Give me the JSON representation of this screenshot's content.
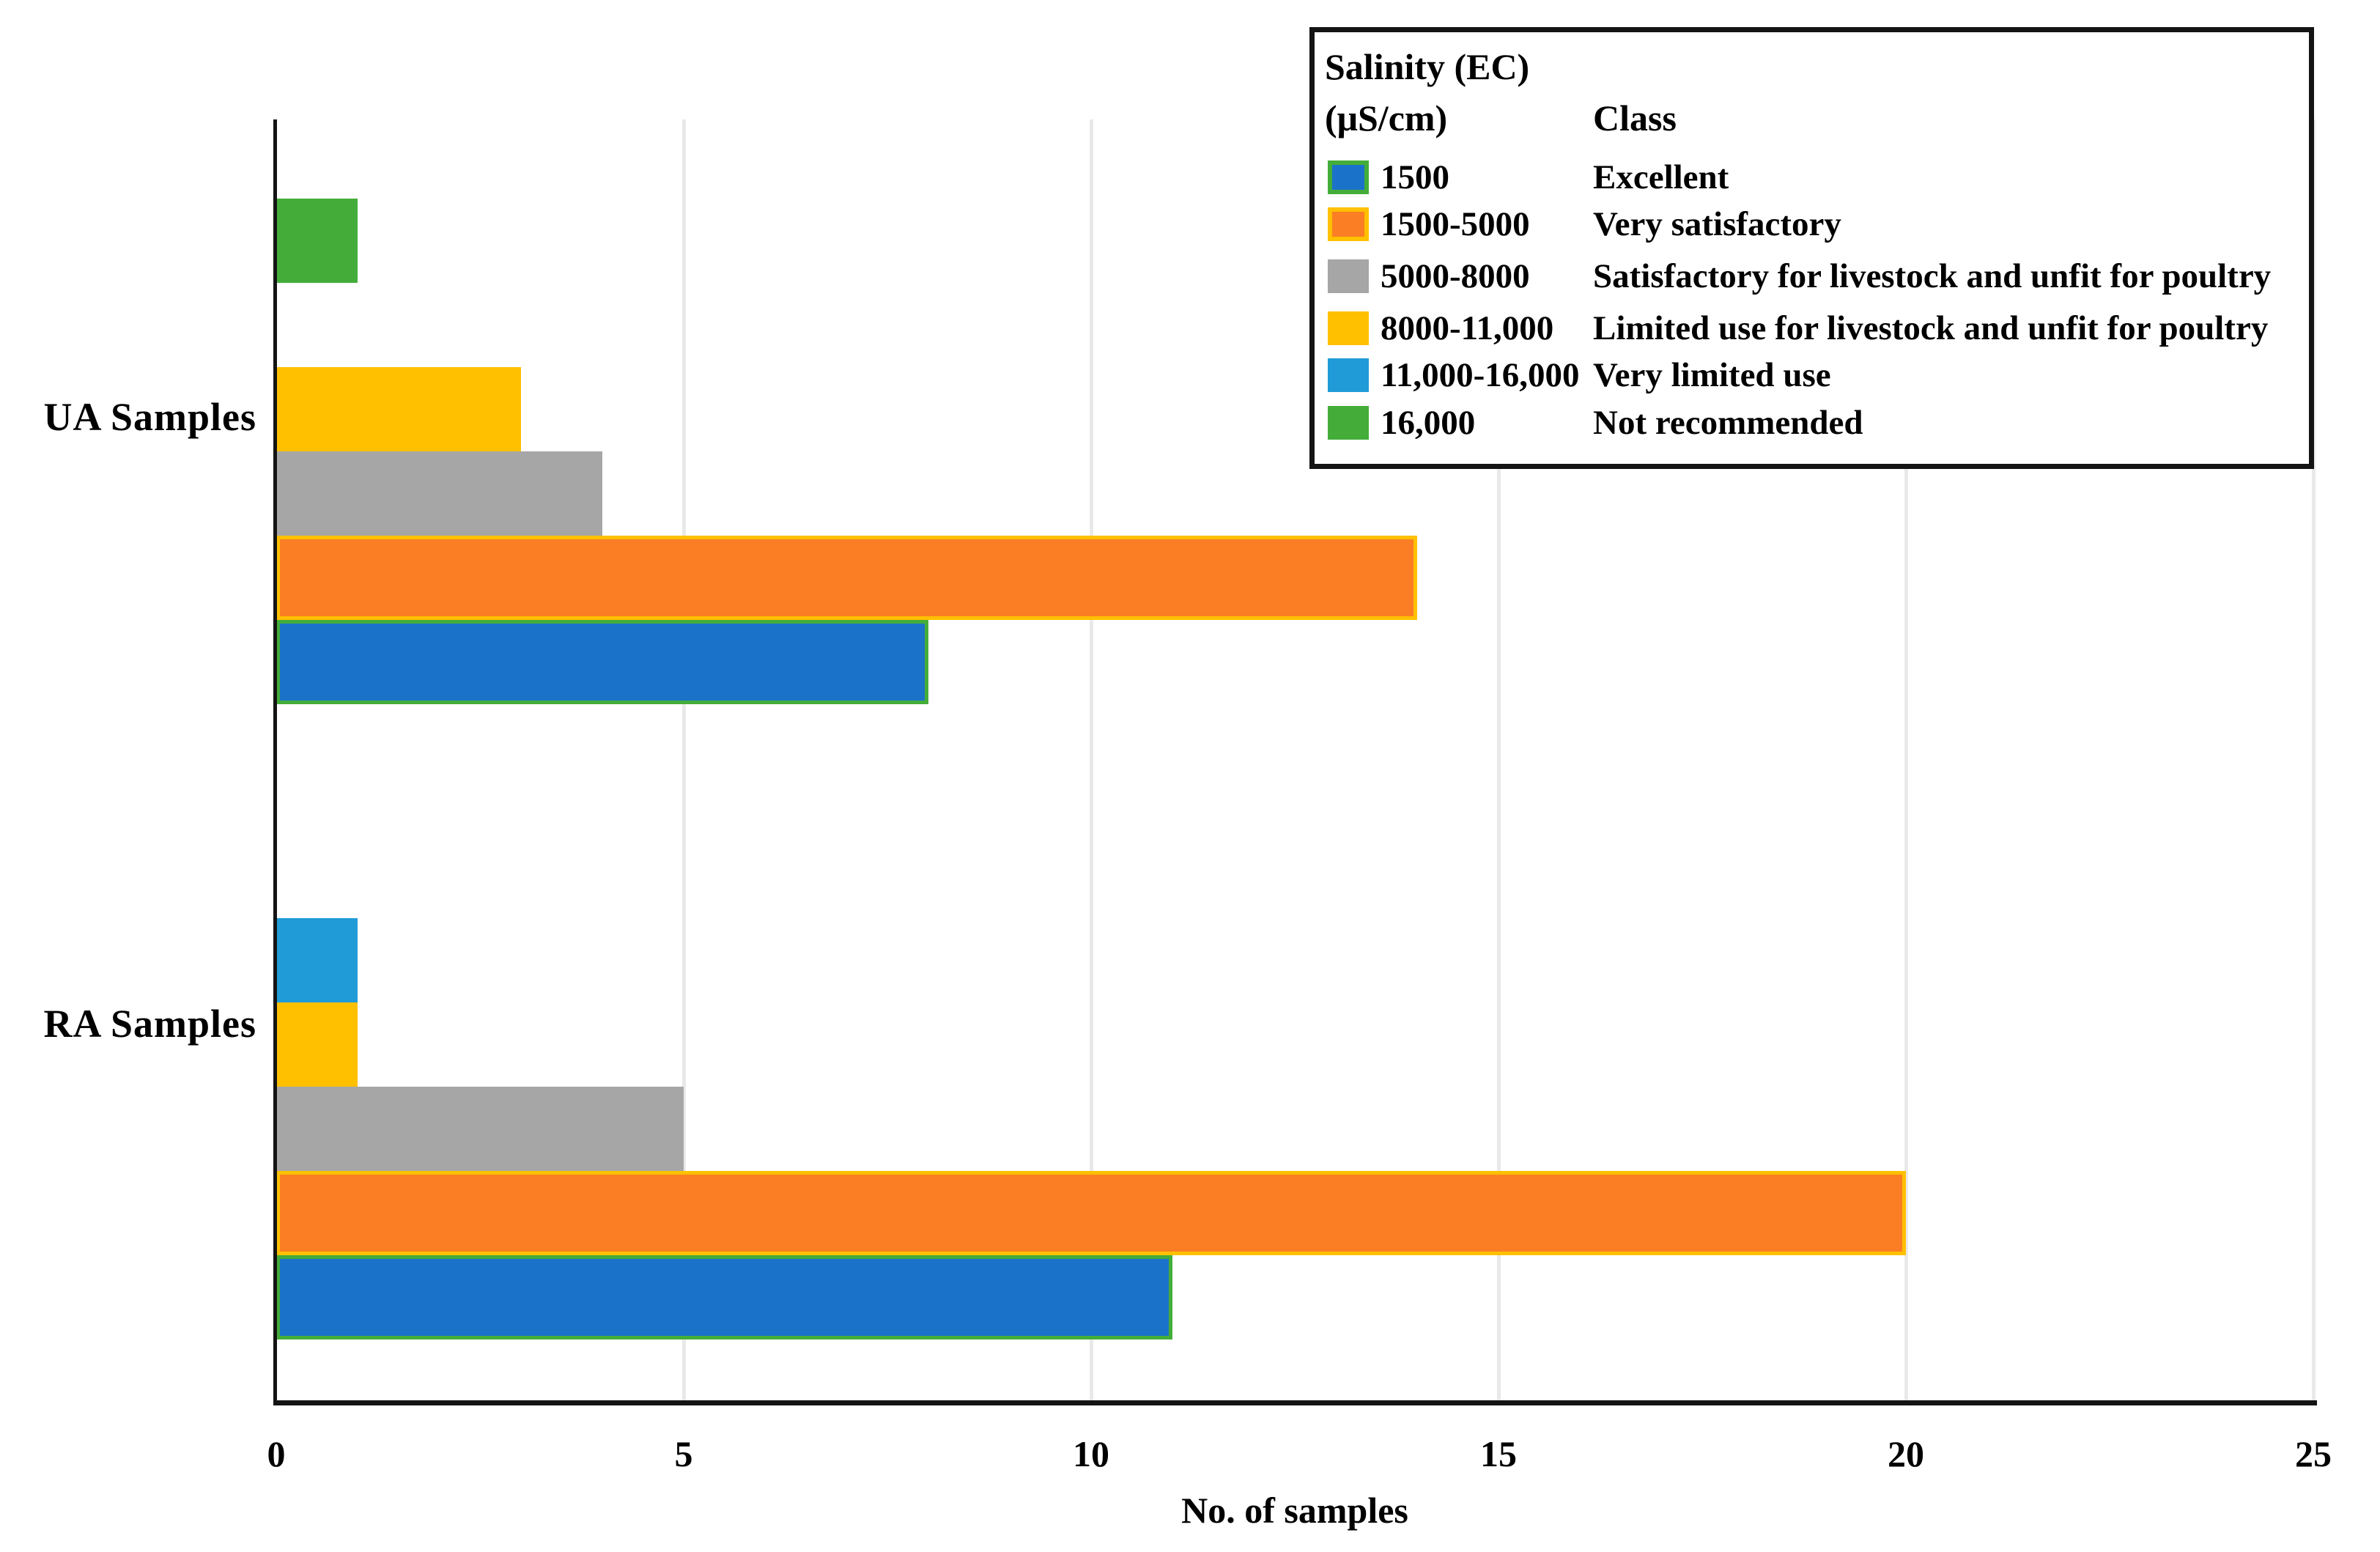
{
  "chart_data": {
    "type": "bar",
    "orientation": "horizontal",
    "xlabel": "No. of samples",
    "xlim": [
      0,
      25
    ],
    "xticks": [
      0,
      5,
      10,
      15,
      20,
      25
    ],
    "categories": [
      "UA Samples",
      "RA Samples"
    ],
    "grid": true,
    "gridline_color": "#e9e9e9",
    "legend": {
      "header_line1": "Salinity (EC)",
      "header_line2": "(μS/cm)",
      "class_header": "Class",
      "position": "top-right"
    },
    "series": [
      {
        "range": "1500",
        "class": "Excellent",
        "color": "#1a73c8",
        "border_color": "#44ad3a",
        "values": [
          8,
          11
        ]
      },
      {
        "range": "1500-5000",
        "class": "Very satisfactory",
        "color": "#fb7d24",
        "border_color": "#ffc000",
        "values": [
          14,
          20
        ]
      },
      {
        "range": "5000-8000",
        "class": "Satisfactory for livestock and unfit for poultry",
        "color": "#a6a6a6",
        "border_color": "#a6a6a6",
        "values": [
          4,
          5
        ]
      },
      {
        "range": "8000-11,000",
        "class": "Limited use for livestock and unfit for poultry",
        "color": "#ffc000",
        "border_color": "#ffc000",
        "values": [
          3,
          1
        ]
      },
      {
        "range": "11,000-16,000",
        "class": "Very limited use",
        "color": "#209bd8",
        "border_color": "#209bd8",
        "values": [
          0,
          1
        ]
      },
      {
        "range": "16,000",
        "class": "Not recommended",
        "color": "#44ad3a",
        "border_color": "#44ad3a",
        "values": [
          1,
          0
        ]
      }
    ]
  }
}
